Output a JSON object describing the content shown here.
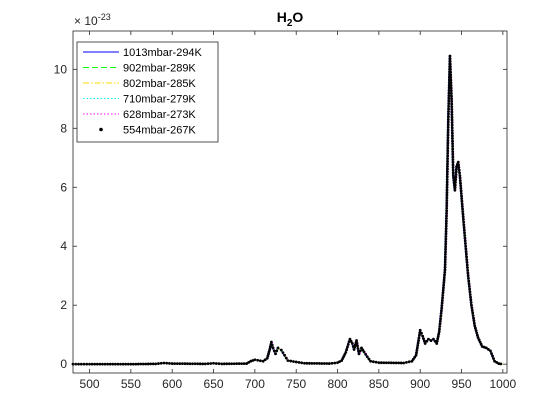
{
  "chart_data": {
    "type": "line",
    "title": {
      "main": "H",
      "sub": "2",
      "tail": "O"
    },
    "xlabel": "",
    "ylabel": "",
    "exponent_label": {
      "base": "× 10",
      "power": "-23"
    },
    "xlim": [
      480,
      1005
    ],
    "ylim": [
      -0.3,
      11.3
    ],
    "x_ticks": [
      500,
      550,
      600,
      650,
      700,
      750,
      800,
      850,
      900,
      950,
      1000
    ],
    "y_ticks": [
      0,
      2,
      4,
      6,
      8,
      10
    ],
    "grid": false,
    "legend_position": "top-left",
    "series": [
      {
        "name": "1013mbar-294K",
        "color": "#0000ff",
        "style": "solid"
      },
      {
        "name": "902mbar-289K",
        "color": "#00ff00",
        "style": "dashed"
      },
      {
        "name": "802mbar-285K",
        "color": "#ffd800",
        "style": "dashdot"
      },
      {
        "name": "710mbar-279K",
        "color": "#00ffff",
        "style": "dotted"
      },
      {
        "name": "628mbar-273K",
        "color": "#ff00ff",
        "style": "dotted"
      },
      {
        "name": "554mbar-267K",
        "color": "#000000",
        "style": "markers"
      }
    ],
    "x": [
      480,
      500,
      550,
      580,
      590,
      600,
      640,
      650,
      660,
      690,
      695,
      700,
      710,
      715,
      718,
      720,
      722,
      725,
      728,
      732,
      736,
      740,
      760,
      790,
      800,
      805,
      810,
      815,
      818,
      820,
      823,
      826,
      829,
      832,
      836,
      840,
      850,
      880,
      890,
      895,
      898,
      900,
      903,
      906,
      910,
      913,
      916,
      920,
      923,
      926,
      930,
      932,
      934,
      936,
      938,
      940,
      942,
      944,
      946,
      948,
      950,
      952,
      955,
      958,
      962,
      966,
      970,
      975,
      980,
      985,
      990,
      995,
      1000
    ],
    "values": [
      0,
      0,
      0,
      0.01,
      0.04,
      0.02,
      0.01,
      0.03,
      0.01,
      0.02,
      0.1,
      0.15,
      0.1,
      0.2,
      0.5,
      0.75,
      0.55,
      0.35,
      0.55,
      0.48,
      0.3,
      0.12,
      0.03,
      0.02,
      0.05,
      0.12,
      0.4,
      0.85,
      0.7,
      0.5,
      0.8,
      0.35,
      0.55,
      0.42,
      0.25,
      0.1,
      0.05,
      0.04,
      0.1,
      0.3,
      0.8,
      1.15,
      0.95,
      0.7,
      0.85,
      0.8,
      0.85,
      0.7,
      1.1,
      1.9,
      3.2,
      5.2,
      8.3,
      10.45,
      9.0,
      6.4,
      5.9,
      6.7,
      6.85,
      6.4,
      5.7,
      5.0,
      4.0,
      3.0,
      2.0,
      1.3,
      0.9,
      0.6,
      0.55,
      0.45,
      0.1,
      0.02,
      0
    ]
  }
}
